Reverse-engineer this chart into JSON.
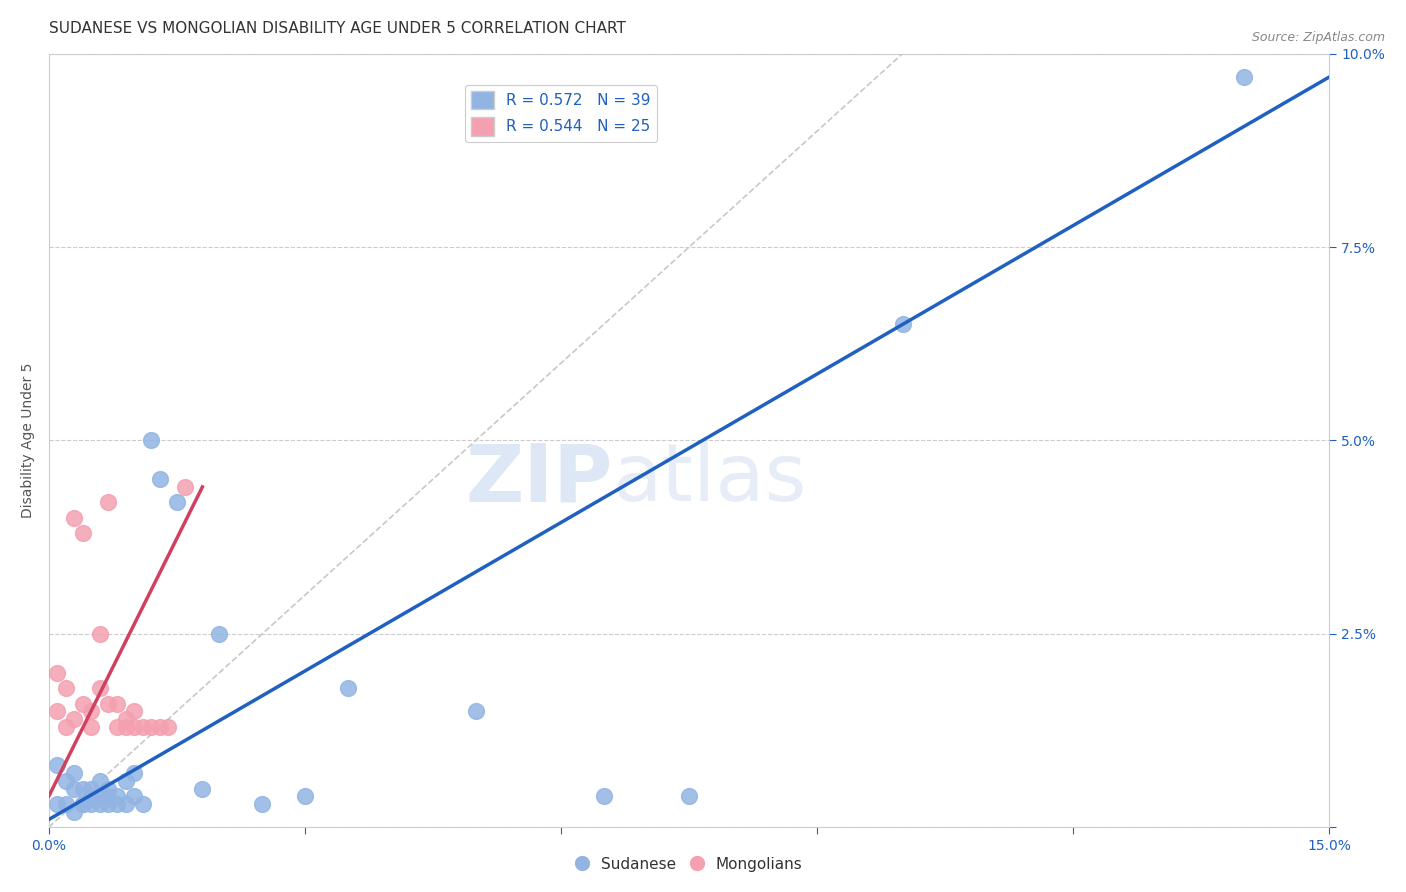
{
  "title": "SUDANESE VS MONGOLIAN DISABILITY AGE UNDER 5 CORRELATION CHART",
  "source": "Source: ZipAtlas.com",
  "ylabel": "Disability Age Under 5",
  "xlim": [
    0.0,
    0.15
  ],
  "ylim": [
    0.0,
    0.1
  ],
  "xticks": [
    0.0,
    0.03,
    0.06,
    0.09,
    0.12,
    0.15
  ],
  "xticklabels": [
    "0.0%",
    "",
    "",
    "",
    "",
    "15.0%"
  ],
  "yticks": [
    0.0,
    0.025,
    0.05,
    0.075,
    0.1
  ],
  "yticklabels": [
    "",
    "2.5%",
    "5.0%",
    "7.5%",
    "10.0%"
  ],
  "sudanese_color": "#92b4e3",
  "mongolian_color": "#f4a0b0",
  "sudanese_line_color": "#2060c0",
  "mongolian_line_color": "#d04060",
  "diagonal_color": "#c8c8c8",
  "sudanese_R": 0.572,
  "sudanese_N": 39,
  "mongolian_R": 0.544,
  "mongolian_N": 25,
  "watermark_zip": "ZIP",
  "watermark_atlas": "atlas",
  "sudanese_x": [
    0.001,
    0.001,
    0.002,
    0.002,
    0.003,
    0.003,
    0.003,
    0.004,
    0.004,
    0.004,
    0.005,
    0.005,
    0.005,
    0.006,
    0.006,
    0.006,
    0.007,
    0.007,
    0.007,
    0.008,
    0.008,
    0.009,
    0.009,
    0.01,
    0.01,
    0.011,
    0.012,
    0.013,
    0.015,
    0.018,
    0.02,
    0.025,
    0.03,
    0.035,
    0.05,
    0.065,
    0.075,
    0.1,
    0.14
  ],
  "sudanese_y": [
    0.003,
    0.008,
    0.006,
    0.003,
    0.005,
    0.007,
    0.002,
    0.003,
    0.005,
    0.003,
    0.005,
    0.003,
    0.004,
    0.004,
    0.003,
    0.006,
    0.005,
    0.004,
    0.003,
    0.004,
    0.003,
    0.003,
    0.006,
    0.004,
    0.007,
    0.003,
    0.05,
    0.045,
    0.042,
    0.005,
    0.025,
    0.003,
    0.004,
    0.018,
    0.015,
    0.004,
    0.004,
    0.065,
    0.097
  ],
  "mongolian_x": [
    0.001,
    0.001,
    0.002,
    0.002,
    0.003,
    0.003,
    0.004,
    0.004,
    0.005,
    0.005,
    0.006,
    0.006,
    0.007,
    0.007,
    0.008,
    0.008,
    0.009,
    0.009,
    0.01,
    0.01,
    0.011,
    0.012,
    0.013,
    0.014,
    0.016
  ],
  "mongolian_y": [
    0.015,
    0.02,
    0.013,
    0.018,
    0.014,
    0.04,
    0.016,
    0.038,
    0.013,
    0.015,
    0.018,
    0.025,
    0.016,
    0.042,
    0.013,
    0.016,
    0.013,
    0.014,
    0.013,
    0.015,
    0.013,
    0.013,
    0.013,
    0.013,
    0.044
  ],
  "title_fontsize": 11,
  "axis_label_fontsize": 10,
  "tick_fontsize": 10,
  "legend_fontsize": 11
}
